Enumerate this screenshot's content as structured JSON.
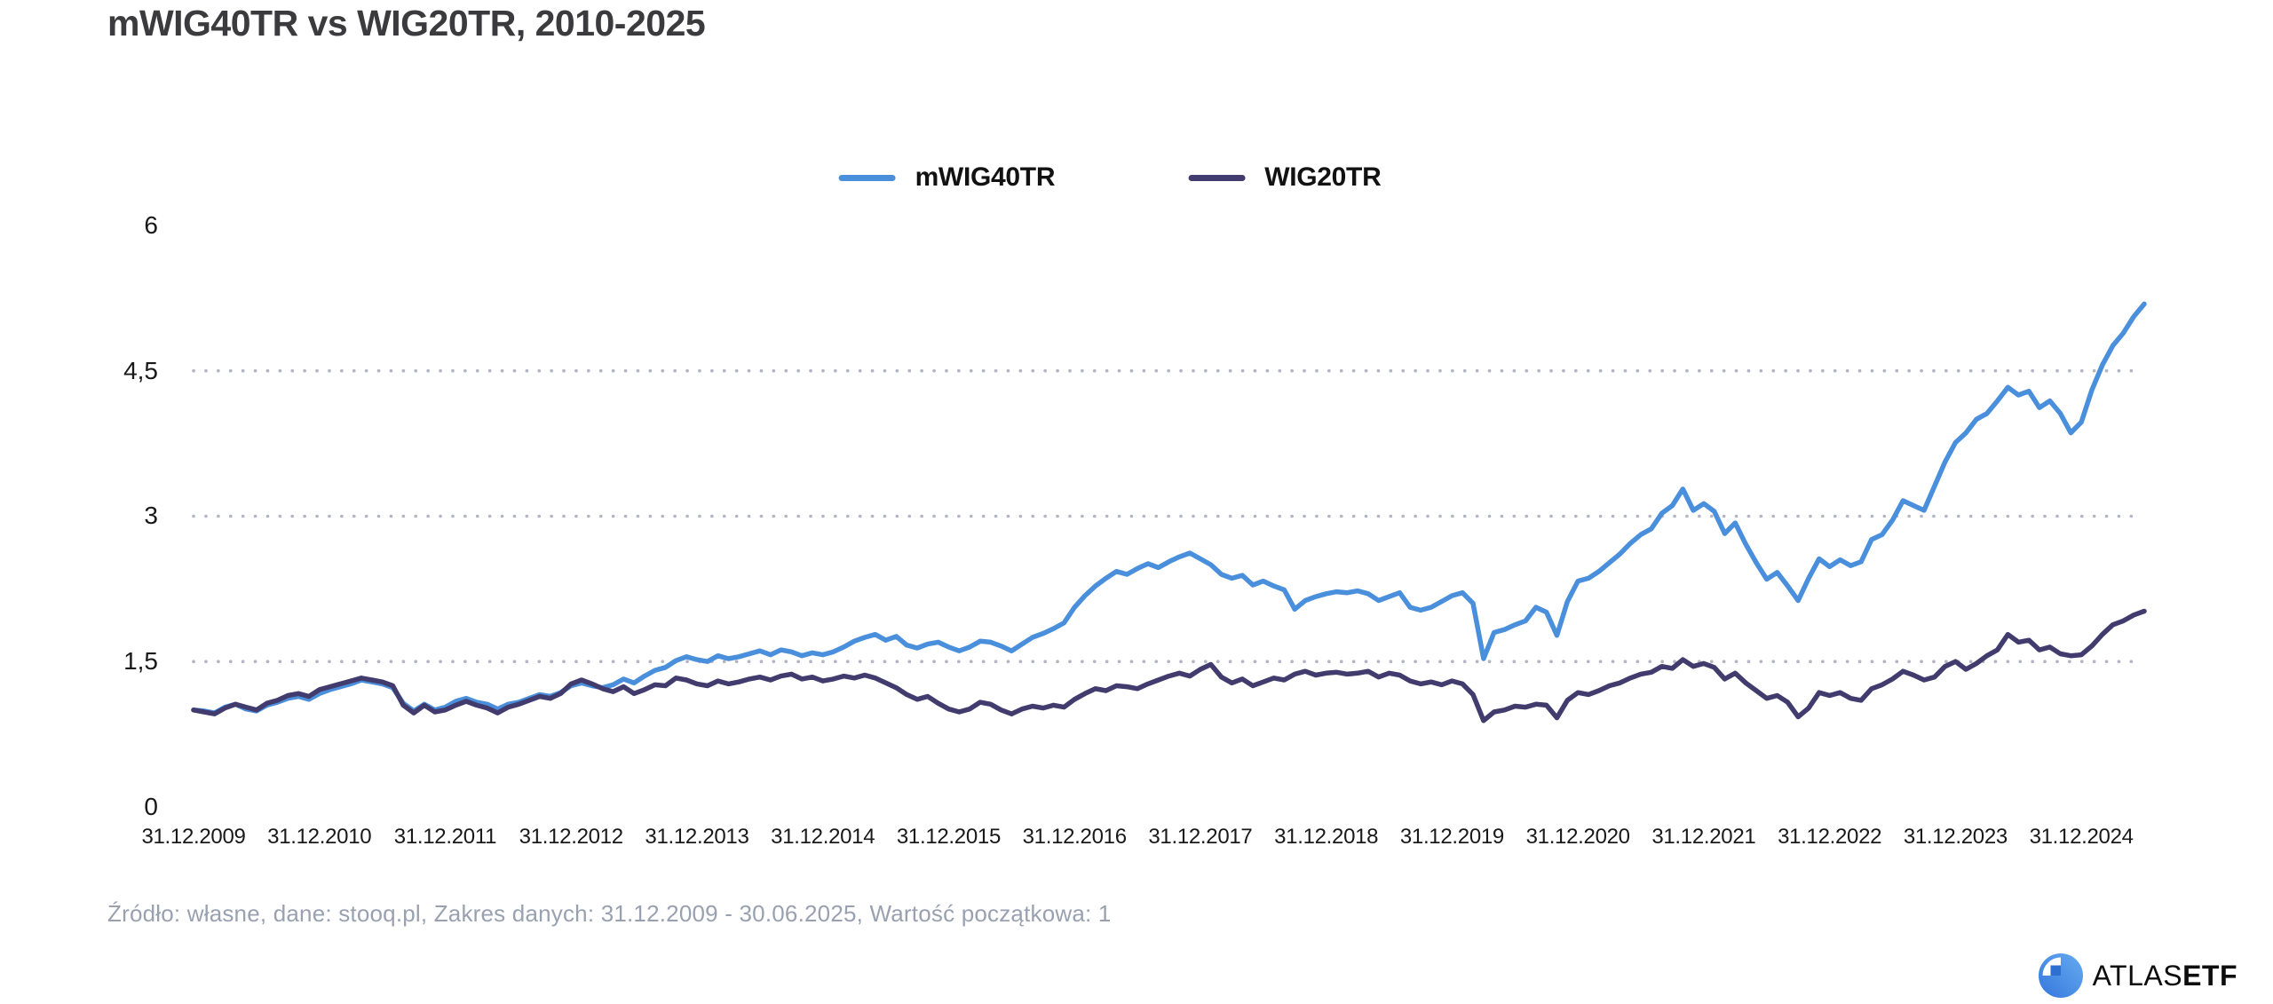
{
  "title": "mWIG40TR vs WIG20TR, 2010-2025",
  "footer": "Źródło: własne, dane: stooq.pl, Zakres danych: 31.12.2009 - 30.06.2025, Wartość początkowa: 1",
  "logo": {
    "brand": "ATLAS",
    "suffix": "ETF"
  },
  "colors": {
    "background": "#ffffff",
    "title_text": "#3b3b3d",
    "axis_text": "#191919",
    "footer_text": "#99a1b1",
    "grid_dots": "#b4b5c4",
    "mwig40tr_line": "#4a8fdb",
    "wig20tr_line": "#413b6e",
    "logo_blue_light": "#66abf0",
    "logo_blue_dark": "#3577dd"
  },
  "chart_data": {
    "type": "line",
    "title": "mWIG40TR vs WIG20TR, 2010-2025",
    "xlabel": "",
    "ylabel": "",
    "ylim": [
      0,
      6
    ],
    "grid": "horizontal-dotted",
    "grid_values": [
      1.5,
      3,
      4.5
    ],
    "legend_position": "top-center",
    "x_start": "31.12.2009",
    "x_end": "30.06.2025",
    "x_frequency": "monthly",
    "initial_value": 1,
    "x_tick_labels": [
      "31.12.2009",
      "31.12.2010",
      "31.12.2011",
      "31.12.2012",
      "31.12.2013",
      "31.12.2014",
      "31.12.2015",
      "31.12.2016",
      "31.12.2017",
      "31.12.2018",
      "31.12.2019",
      "31.12.2020",
      "31.12.2021",
      "31.12.2022",
      "31.12.2023",
      "31.12.2024"
    ],
    "y_ticks": {
      "values": [
        0,
        1.5,
        3,
        4.5,
        6
      ],
      "labels": [
        "0",
        "1,5",
        "3",
        "4,5",
        "6"
      ]
    },
    "series": [
      {
        "name": "mWIG40TR",
        "color": "#4a8fdb",
        "values": [
          1.0,
          0.99,
          0.97,
          1.03,
          1.06,
          1.01,
          0.99,
          1.05,
          1.08,
          1.12,
          1.14,
          1.11,
          1.17,
          1.21,
          1.24,
          1.27,
          1.31,
          1.29,
          1.27,
          1.23,
          1.07,
          0.99,
          1.06,
          1.0,
          1.03,
          1.09,
          1.12,
          1.08,
          1.06,
          1.01,
          1.06,
          1.08,
          1.12,
          1.16,
          1.14,
          1.18,
          1.25,
          1.28,
          1.25,
          1.23,
          1.26,
          1.32,
          1.28,
          1.35,
          1.41,
          1.44,
          1.51,
          1.55,
          1.52,
          1.5,
          1.56,
          1.53,
          1.55,
          1.58,
          1.61,
          1.57,
          1.62,
          1.6,
          1.56,
          1.59,
          1.57,
          1.6,
          1.65,
          1.71,
          1.75,
          1.78,
          1.72,
          1.76,
          1.67,
          1.64,
          1.68,
          1.7,
          1.65,
          1.61,
          1.65,
          1.71,
          1.7,
          1.66,
          1.61,
          1.68,
          1.75,
          1.79,
          1.84,
          1.9,
          2.06,
          2.18,
          2.28,
          2.36,
          2.43,
          2.4,
          2.46,
          2.51,
          2.47,
          2.53,
          2.58,
          2.62,
          2.56,
          2.5,
          2.4,
          2.36,
          2.39,
          2.29,
          2.33,
          2.28,
          2.24,
          2.04,
          2.13,
          2.17,
          2.2,
          2.22,
          2.21,
          2.23,
          2.2,
          2.13,
          2.17,
          2.21,
          2.06,
          2.03,
          2.06,
          2.12,
          2.18,
          2.21,
          2.1,
          1.53,
          1.8,
          1.83,
          1.88,
          1.92,
          2.06,
          2.01,
          1.77,
          2.12,
          2.33,
          2.36,
          2.43,
          2.52,
          2.61,
          2.72,
          2.81,
          2.87,
          3.03,
          3.11,
          3.28,
          3.06,
          3.13,
          3.05,
          2.82,
          2.93,
          2.71,
          2.52,
          2.35,
          2.42,
          2.28,
          2.13,
          2.36,
          2.56,
          2.48,
          2.55,
          2.49,
          2.53,
          2.76,
          2.81,
          2.96,
          3.16,
          3.11,
          3.06,
          3.31,
          3.56,
          3.76,
          3.86,
          4.0,
          4.06,
          4.19,
          4.33,
          4.25,
          4.29,
          4.12,
          4.19,
          4.06,
          3.86,
          3.97,
          4.3,
          4.56,
          4.76,
          4.89,
          5.06,
          5.19
        ]
      },
      {
        "name": "WIG20TR",
        "color": "#413b6e",
        "values": [
          1.0,
          0.98,
          0.96,
          1.02,
          1.06,
          1.03,
          1.0,
          1.07,
          1.1,
          1.15,
          1.17,
          1.14,
          1.21,
          1.24,
          1.27,
          1.3,
          1.33,
          1.31,
          1.29,
          1.25,
          1.05,
          0.97,
          1.05,
          0.98,
          1.0,
          1.05,
          1.09,
          1.05,
          1.02,
          0.97,
          1.03,
          1.06,
          1.1,
          1.14,
          1.12,
          1.17,
          1.27,
          1.31,
          1.27,
          1.22,
          1.19,
          1.24,
          1.17,
          1.21,
          1.26,
          1.25,
          1.33,
          1.31,
          1.27,
          1.25,
          1.3,
          1.27,
          1.29,
          1.32,
          1.34,
          1.31,
          1.35,
          1.37,
          1.32,
          1.34,
          1.3,
          1.32,
          1.35,
          1.33,
          1.36,
          1.33,
          1.28,
          1.23,
          1.16,
          1.11,
          1.14,
          1.07,
          1.01,
          0.98,
          1.01,
          1.08,
          1.06,
          1.0,
          0.96,
          1.01,
          1.04,
          1.02,
          1.05,
          1.03,
          1.11,
          1.17,
          1.22,
          1.2,
          1.25,
          1.24,
          1.22,
          1.27,
          1.31,
          1.35,
          1.38,
          1.35,
          1.42,
          1.47,
          1.34,
          1.28,
          1.32,
          1.25,
          1.29,
          1.33,
          1.31,
          1.37,
          1.4,
          1.36,
          1.38,
          1.39,
          1.37,
          1.38,
          1.4,
          1.34,
          1.38,
          1.36,
          1.3,
          1.27,
          1.29,
          1.26,
          1.3,
          1.27,
          1.16,
          0.89,
          0.98,
          1.0,
          1.04,
          1.03,
          1.06,
          1.05,
          0.92,
          1.1,
          1.18,
          1.16,
          1.2,
          1.25,
          1.28,
          1.33,
          1.37,
          1.39,
          1.45,
          1.43,
          1.52,
          1.45,
          1.48,
          1.44,
          1.32,
          1.38,
          1.28,
          1.2,
          1.12,
          1.15,
          1.08,
          0.93,
          1.02,
          1.18,
          1.15,
          1.18,
          1.12,
          1.1,
          1.22,
          1.26,
          1.32,
          1.4,
          1.36,
          1.31,
          1.34,
          1.45,
          1.5,
          1.42,
          1.48,
          1.56,
          1.62,
          1.78,
          1.7,
          1.72,
          1.62,
          1.65,
          1.58,
          1.56,
          1.57,
          1.66,
          1.78,
          1.88,
          1.92,
          1.98,
          2.02
        ]
      }
    ]
  }
}
